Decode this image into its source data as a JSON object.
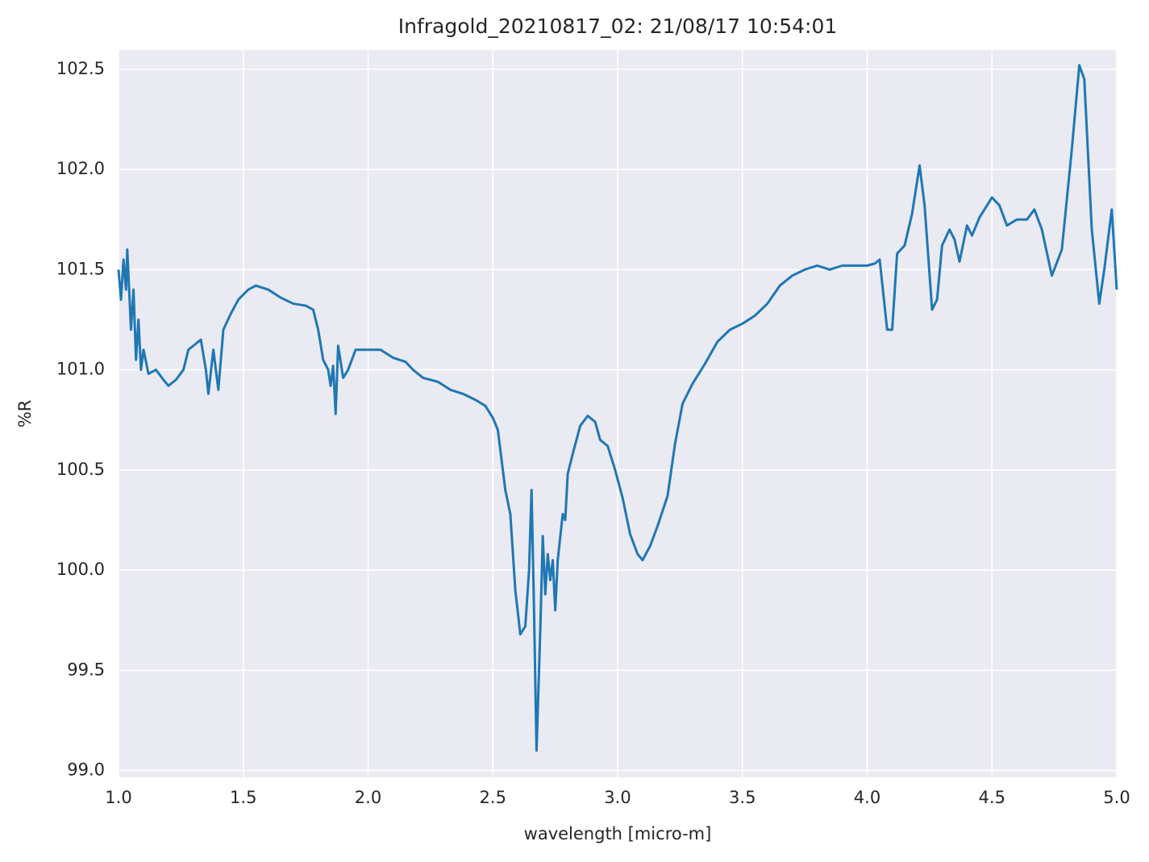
{
  "chart_data": {
    "type": "line",
    "title": "Infragold_20210817_02:  21/08/17 10:54:01",
    "xlabel": "wavelength [micro-m]",
    "ylabel": "%R",
    "color": "#1f77b4",
    "grid": true,
    "xlim": [
      1,
      5
    ],
    "ylim": [
      98.966,
      102.596
    ],
    "xticks": [
      {
        "value": 1,
        "label": "1.0"
      },
      1.5,
      {
        "value": 2,
        "label": "2.0"
      },
      2.5,
      {
        "value": 3,
        "label": "3.0"
      },
      3.5,
      {
        "value": 4,
        "label": "4.0"
      },
      4.5,
      {
        "value": 5,
        "label": "5.0"
      }
    ],
    "yticks": [
      {
        "value": 99,
        "label": "99.0"
      },
      99.5,
      {
        "value": 100,
        "label": "100.0"
      },
      100.5,
      {
        "value": 101,
        "label": "101.0"
      },
      101.5,
      {
        "value": 102,
        "label": "102.0"
      },
      102.5
    ],
    "x": [
      1.0,
      1.01,
      1.02,
      1.03,
      1.035,
      1.05,
      1.06,
      1.07,
      1.08,
      1.09,
      1.1,
      1.12,
      1.15,
      1.18,
      1.2,
      1.23,
      1.26,
      1.28,
      1.3,
      1.33,
      1.35,
      1.36,
      1.38,
      1.4,
      1.42,
      1.45,
      1.48,
      1.52,
      1.55,
      1.6,
      1.65,
      1.7,
      1.75,
      1.78,
      1.8,
      1.82,
      1.84,
      1.85,
      1.86,
      1.87,
      1.88,
      1.9,
      1.92,
      1.95,
      2.0,
      2.05,
      2.1,
      2.15,
      2.18,
      2.22,
      2.28,
      2.33,
      2.38,
      2.43,
      2.47,
      2.5,
      2.52,
      2.55,
      2.57,
      2.59,
      2.61,
      2.63,
      2.645,
      2.655,
      2.665,
      2.675,
      2.69,
      2.7,
      2.71,
      2.72,
      2.73,
      2.74,
      2.75,
      2.76,
      2.78,
      2.79,
      2.8,
      2.82,
      2.85,
      2.88,
      2.91,
      2.93,
      2.96,
      2.99,
      3.02,
      3.05,
      3.08,
      3.1,
      3.13,
      3.16,
      3.2,
      3.23,
      3.26,
      3.3,
      3.35,
      3.4,
      3.45,
      3.5,
      3.55,
      3.6,
      3.65,
      3.7,
      3.75,
      3.8,
      3.85,
      3.9,
      3.95,
      4.0,
      4.03,
      4.05,
      4.08,
      4.1,
      4.12,
      4.15,
      4.18,
      4.21,
      4.23,
      4.26,
      4.28,
      4.3,
      4.33,
      4.35,
      4.37,
      4.4,
      4.42,
      4.45,
      4.5,
      4.53,
      4.56,
      4.6,
      4.64,
      4.67,
      4.7,
      4.74,
      4.78,
      4.82,
      4.85,
      4.87,
      4.9,
      4.93,
      4.95,
      4.98,
      5.0
    ],
    "values": [
      101.5,
      101.35,
      101.55,
      101.4,
      101.6,
      101.2,
      101.4,
      101.05,
      101.25,
      101.0,
      101.1,
      100.98,
      101.0,
      100.95,
      100.92,
      100.95,
      101.0,
      101.1,
      101.12,
      101.15,
      101.0,
      100.88,
      101.1,
      100.9,
      101.2,
      101.28,
      101.35,
      101.4,
      101.42,
      101.4,
      101.36,
      101.33,
      101.32,
      101.3,
      101.2,
      101.05,
      101.0,
      100.92,
      101.02,
      100.78,
      101.12,
      100.96,
      101.0,
      101.1,
      101.1,
      101.1,
      101.06,
      101.04,
      101.0,
      100.96,
      100.94,
      100.9,
      100.88,
      100.85,
      100.82,
      100.76,
      100.7,
      100.4,
      100.28,
      99.9,
      99.68,
      99.72,
      100.0,
      100.4,
      99.8,
      99.1,
      99.7,
      100.17,
      99.88,
      100.08,
      99.95,
      100.05,
      99.8,
      100.05,
      100.28,
      100.25,
      100.48,
      100.58,
      100.72,
      100.77,
      100.74,
      100.65,
      100.62,
      100.5,
      100.36,
      100.18,
      100.08,
      100.05,
      100.12,
      100.22,
      100.37,
      100.63,
      100.83,
      100.93,
      101.03,
      101.14,
      101.2,
      101.23,
      101.27,
      101.33,
      101.42,
      101.47,
      101.5,
      101.52,
      101.5,
      101.52,
      101.52,
      101.52,
      101.53,
      101.55,
      101.2,
      101.2,
      101.58,
      101.62,
      101.78,
      102.02,
      101.82,
      101.3,
      101.35,
      101.62,
      101.7,
      101.65,
      101.54,
      101.72,
      101.67,
      101.76,
      101.86,
      101.82,
      101.72,
      101.75,
      101.75,
      101.8,
      101.7,
      101.47,
      101.6,
      102.1,
      102.52,
      102.45,
      101.7,
      101.33,
      101.5,
      101.8,
      101.4
    ]
  }
}
